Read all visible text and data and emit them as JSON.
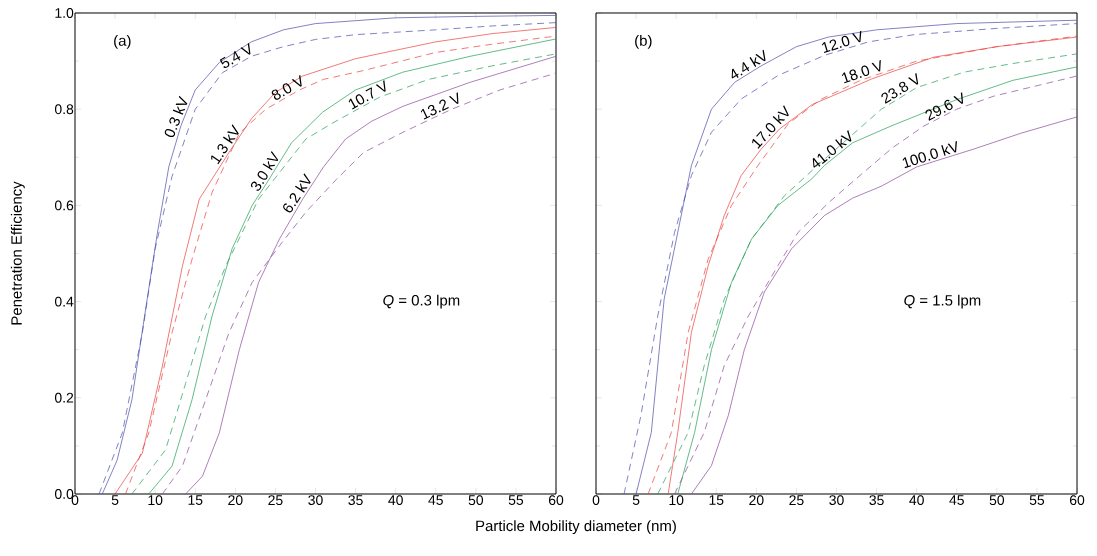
{
  "chart_data": [
    {
      "type": "line",
      "ylabel": "Penetration Efficiency",
      "xlabel": "Particle Mobility diameter (nm)",
      "annotations": [
        "(a)",
        "*Q* = 0.3 lpm"
      ],
      "xlim": [
        0,
        60
      ],
      "ylim": [
        0,
        1
      ],
      "xticks": [
        0,
        5,
        10,
        15,
        20,
        25,
        30,
        35,
        40,
        45,
        50,
        55,
        60
      ],
      "yticks": [
        {
          "value": 0,
          "label": "0.0"
        },
        {
          "value": 0.2,
          "label": "0.2"
        },
        {
          "value": 0.4,
          "label": "0.4"
        },
        {
          "value": 0.6,
          "label": "0.6"
        },
        {
          "value": 0.8,
          "label": "0.8"
        },
        {
          "value": 1,
          "label": "1.0"
        }
      ],
      "series": [
        {
          "name": "0.3 kV",
          "color": "#4b4baa",
          "line_style": "solid",
          "x": [
            3.4,
            5.25,
            7.1,
            9,
            10.25,
            11.7,
            13.2,
            15,
            18,
            22,
            26,
            30,
            40,
            50,
            60
          ],
          "values": [
            0,
            0.07,
            0.196,
            0.405,
            0.54,
            0.68,
            0.765,
            0.84,
            0.897,
            0.94,
            0.965,
            0.978,
            0.99,
            0.993,
            0.995
          ]
        },
        {
          "name": "5.4 V",
          "color": "#4b4baa",
          "line_style": "dashed",
          "x": [
            3,
            5.9,
            8.4,
            10,
            12.1,
            15,
            18.4,
            22,
            26,
            30,
            35,
            45,
            52,
            60
          ],
          "values": [
            0,
            0.127,
            0.335,
            0.51,
            0.66,
            0.8,
            0.876,
            0.91,
            0.93,
            0.945,
            0.955,
            0.965,
            0.973,
            0.98
          ]
        },
        {
          "name": "1.3 kV",
          "color": "#e8413c",
          "line_style": "solid",
          "x": [
            5,
            8.4,
            10.9,
            13.4,
            15.5,
            19.2,
            22,
            25,
            28.4,
            35,
            45,
            52,
            60
          ],
          "values": [
            0,
            0.085,
            0.266,
            0.474,
            0.613,
            0.71,
            0.78,
            0.835,
            0.869,
            0.905,
            0.94,
            0.957,
            0.97
          ]
        },
        {
          "name": "8.0 V",
          "color": "#e8413c",
          "line_style": "dashed",
          "x": [
            6.3,
            9.2,
            12.1,
            14.6,
            17.1,
            20.5,
            23.8,
            28,
            31,
            35.9,
            45,
            52,
            60
          ],
          "values": [
            0,
            0.127,
            0.335,
            0.488,
            0.627,
            0.75,
            0.8,
            0.84,
            0.862,
            0.88,
            0.918,
            0.935,
            0.952
          ]
        },
        {
          "name": "3.0 kV",
          "color": "#1f9e55",
          "line_style": "solid",
          "x": [
            9.2,
            12.1,
            14.6,
            17.1,
            19.6,
            22.1,
            24.2,
            27,
            30.9,
            35,
            40.9,
            49.3,
            60
          ],
          "values": [
            0,
            0.058,
            0.196,
            0.37,
            0.51,
            0.6,
            0.654,
            0.73,
            0.794,
            0.84,
            0.877,
            0.91,
            0.946
          ]
        },
        {
          "name": "10.7 V",
          "color": "#1f9e55",
          "line_style": "dashed",
          "x": [
            7.1,
            11.3,
            13.8,
            16.3,
            18.8,
            22.9,
            28.8,
            32,
            38,
            44.1,
            52,
            60
          ],
          "values": [
            0,
            0.092,
            0.23,
            0.37,
            0.474,
            0.613,
            0.738,
            0.77,
            0.825,
            0.862,
            0.89,
            0.915
          ]
        },
        {
          "name": "6.2 kV",
          "color": "#8b479c",
          "line_style": "solid",
          "x": [
            13.8,
            15.9,
            18,
            20.5,
            22.9,
            25.5,
            28.4,
            31,
            33.75,
            37,
            40.9,
            49.3,
            60
          ],
          "values": [
            0,
            0.037,
            0.127,
            0.3,
            0.44,
            0.53,
            0.613,
            0.68,
            0.738,
            0.775,
            0.806,
            0.856,
            0.91
          ]
        },
        {
          "name": "13.2 V",
          "color": "#8b479c",
          "line_style": "dashed",
          "x": [
            10.9,
            13.4,
            16.3,
            19.2,
            22.1,
            25.5,
            28.8,
            32.6,
            36,
            40.9,
            47,
            53,
            60
          ],
          "values": [
            0,
            0.058,
            0.196,
            0.335,
            0.44,
            0.516,
            0.586,
            0.654,
            0.71,
            0.752,
            0.8,
            0.84,
            0.875
          ]
        }
      ]
    },
    {
      "type": "line",
      "annotations": [
        "(b)",
        "*Q* = 1.5 lpm"
      ],
      "xlim": [
        0,
        60
      ],
      "ylim": [
        0,
        1
      ],
      "xticks": [
        0,
        5,
        10,
        15,
        20,
        25,
        30,
        35,
        40,
        45,
        50,
        55,
        60
      ],
      "yticks": [
        {
          "value": 0,
          "label": null
        },
        {
          "value": 0.2,
          "label": null
        },
        {
          "value": 0.4,
          "label": null
        },
        {
          "value": 0.6,
          "label": null
        },
        {
          "value": 0.8,
          "label": null
        },
        {
          "value": 1,
          "label": null
        }
      ],
      "tick_labels": "x",
      "series": [
        {
          "name": "4.4 kV",
          "color": "#4b4baa",
          "line_style": "solid",
          "x": [
            5,
            6.9,
            8.5,
            10.2,
            11.9,
            14.4,
            17.3,
            20.6,
            25,
            29,
            35,
            45,
            60
          ],
          "values": [
            0,
            0.128,
            0.405,
            0.544,
            0.683,
            0.8,
            0.856,
            0.89,
            0.93,
            0.95,
            0.965,
            0.978,
            0.985
          ]
        },
        {
          "name": "12.0 V",
          "color": "#4b4baa",
          "line_style": "dashed",
          "x": [
            3.5,
            5.6,
            7.7,
            9.8,
            11.9,
            14.4,
            18.1,
            22.7,
            28.5,
            34,
            39.7,
            50,
            60
          ],
          "values": [
            0,
            0.163,
            0.37,
            0.544,
            0.662,
            0.752,
            0.821,
            0.87,
            0.912,
            0.94,
            0.955,
            0.968,
            0.978
          ]
        },
        {
          "name": "17.0 kV",
          "color": "#e8413c",
          "line_style": "solid",
          "x": [
            9,
            10.2,
            11.9,
            14,
            16,
            18.1,
            20.6,
            22.9,
            27,
            31.5,
            34.4,
            42.1,
            50,
            60
          ],
          "values": [
            0,
            0.128,
            0.336,
            0.475,
            0.579,
            0.662,
            0.717,
            0.759,
            0.81,
            0.842,
            0.863,
            0.908,
            0.93,
            0.95
          ]
        },
        {
          "name": "18.0 V",
          "color": "#e8413c",
          "line_style": "dashed",
          "x": [
            6.5,
            9.4,
            11.5,
            14,
            16.9,
            20.2,
            24,
            28,
            33,
            40,
            50,
            60
          ],
          "values": [
            0,
            0.128,
            0.336,
            0.489,
            0.6,
            0.683,
            0.77,
            0.82,
            0.86,
            0.9,
            0.93,
            0.952
          ]
        },
        {
          "name": "41.0 kV",
          "color": "#1f9e55",
          "line_style": "solid",
          "x": [
            10.2,
            12.3,
            14.4,
            16.9,
            19.4,
            22.7,
            26.9,
            28.5,
            32,
            36.8,
            45,
            52,
            60
          ],
          "values": [
            0,
            0.128,
            0.3,
            0.44,
            0.53,
            0.6,
            0.655,
            0.683,
            0.73,
            0.765,
            0.82,
            0.86,
            0.888
          ]
        },
        {
          "name": "23.8 V",
          "color": "#1f9e55",
          "line_style": "dashed",
          "x": [
            7.7,
            11.5,
            13.5,
            16,
            19.4,
            23.5,
            28.5,
            35.6,
            40,
            45.9,
            52,
            60
          ],
          "values": [
            0,
            0.128,
            0.267,
            0.405,
            0.53,
            0.62,
            0.696,
            0.8,
            0.845,
            0.877,
            0.895,
            0.915
          ]
        },
        {
          "name": "100.0 kV",
          "color": "#8b479c",
          "line_style": "solid",
          "x": [
            11.9,
            14.4,
            16.5,
            18.5,
            21,
            24.4,
            28.5,
            32,
            35.6,
            40,
            47.1,
            53,
            60
          ],
          "values": [
            0,
            0.059,
            0.163,
            0.3,
            0.42,
            0.51,
            0.579,
            0.615,
            0.64,
            0.68,
            0.717,
            0.75,
            0.784
          ]
        },
        {
          "name": "29.6 V",
          "color": "#8b479c",
          "line_style": "dashed",
          "x": [
            9.8,
            13.5,
            16,
            19,
            22.7,
            25.2,
            29.3,
            33.4,
            37,
            40.9,
            45,
            49.6,
            60
          ],
          "values": [
            0,
            0.128,
            0.267,
            0.37,
            0.475,
            0.544,
            0.61,
            0.669,
            0.72,
            0.765,
            0.8,
            0.827,
            0.869
          ]
        }
      ]
    }
  ]
}
